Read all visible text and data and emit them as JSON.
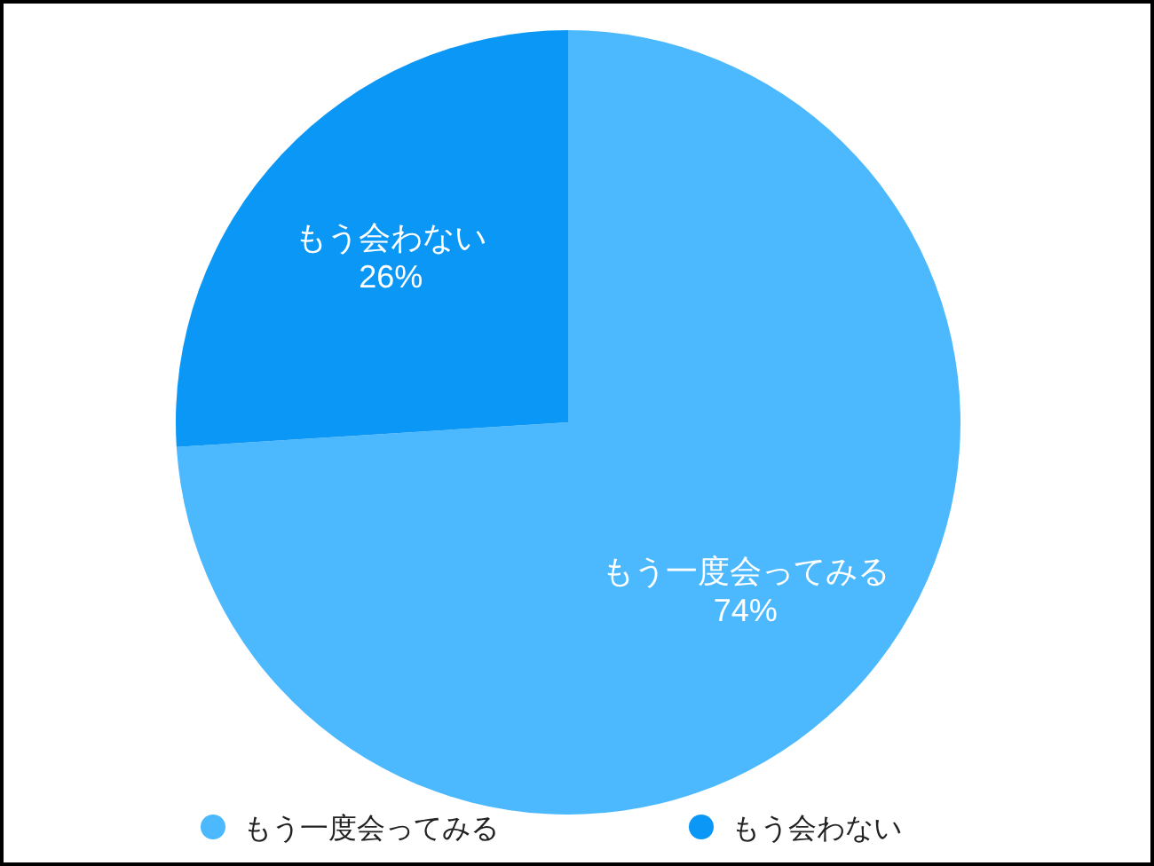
{
  "chart_data": {
    "type": "pie",
    "categories": [
      "もう一度会ってみる",
      "もう会わない"
    ],
    "values": [
      74,
      26
    ],
    "colors": [
      "#4cb9ff",
      "#0b97f5"
    ],
    "value_labels": [
      "74%",
      "26%"
    ],
    "legend": "bottom"
  }
}
